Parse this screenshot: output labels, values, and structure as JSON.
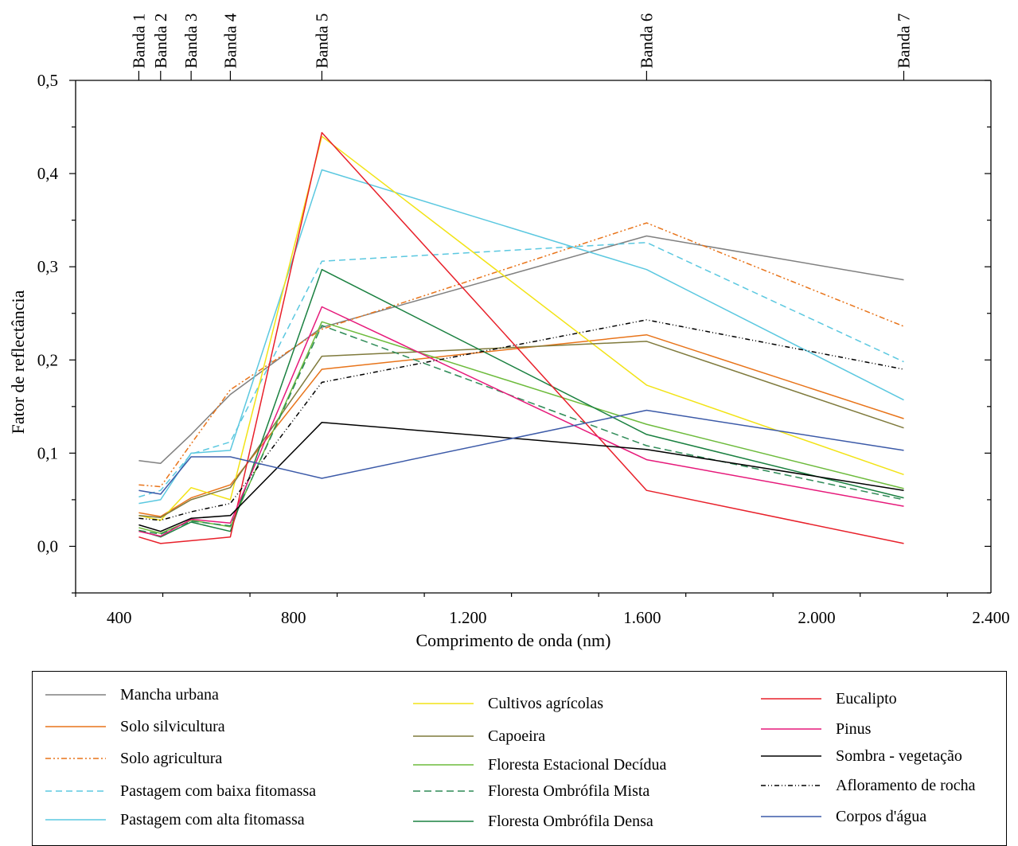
{
  "chart_data": {
    "type": "line",
    "title": "",
    "xlabel": "Comprimento de onda (nm)",
    "ylabel": "Fator de reflectância",
    "xlim": [
      300,
      2400
    ],
    "ylim": [
      -0.05,
      0.5
    ],
    "x_ticks": [
      400,
      800,
      1200,
      1600,
      2000,
      2400
    ],
    "x_tick_labels": [
      "400",
      "800",
      "1.200",
      "1.600",
      "2.000",
      "2.400"
    ],
    "y_ticks": [
      0.0,
      0.1,
      0.2,
      0.3,
      0.4,
      0.5
    ],
    "y_tick_labels": [
      "0,0",
      "0,1",
      "0,2",
      "0,3",
      "0,4",
      "0,5"
    ],
    "bands": [
      {
        "label": "Banda 1",
        "x": 445
      },
      {
        "label": "Banda 2",
        "x": 495
      },
      {
        "label": "Banda 3",
        "x": 565
      },
      {
        "label": "Banda 4",
        "x": 655
      },
      {
        "label": "Banda 5",
        "x": 865
      },
      {
        "label": "Banda 6",
        "x": 1610
      },
      {
        "label": "Banda 7",
        "x": 2200
      }
    ],
    "x": [
      445,
      495,
      565,
      655,
      865,
      1610,
      2200
    ],
    "grid": false,
    "legend_position": "bottom",
    "series": [
      {
        "name": "Mancha urbana",
        "color": "#808080",
        "dash": "",
        "values": [
          0.092,
          0.089,
          0.12,
          0.163,
          0.235,
          0.333,
          0.286
        ]
      },
      {
        "name": "Solo silvicultura",
        "color": "#e8741a",
        "dash": "",
        "values": [
          0.036,
          0.032,
          0.052,
          0.066,
          0.19,
          0.227,
          0.137
        ]
      },
      {
        "name": "Solo agricultura",
        "color": "#e8741a",
        "dash": "7 3 2 3 2 3",
        "values": [
          0.066,
          0.064,
          0.11,
          0.168,
          0.233,
          0.347,
          0.236
        ]
      },
      {
        "name": "Pastagem com baixa fitomassa",
        "color": "#5bc8e0",
        "dash": "8 5",
        "values": [
          0.053,
          0.06,
          0.099,
          0.112,
          0.306,
          0.326,
          0.198
        ]
      },
      {
        "name": "Pastagem com alta fitomassa",
        "color": "#5bc8e0",
        "dash": "",
        "values": [
          0.046,
          0.05,
          0.1,
          0.103,
          0.404,
          0.297,
          0.157
        ]
      },
      {
        "name": "Cultivos agrícolas",
        "color": "#f2e316",
        "dash": "",
        "values": [
          0.033,
          0.028,
          0.063,
          0.05,
          0.44,
          0.173,
          0.077
        ]
      },
      {
        "name": "Capoeira",
        "color": "#7f7a3c",
        "dash": "",
        "values": [
          0.033,
          0.031,
          0.05,
          0.063,
          0.204,
          0.22,
          0.127
        ]
      },
      {
        "name": "Floresta Estacional Decídua",
        "color": "#6dbb3c",
        "dash": "",
        "values": [
          0.02,
          0.014,
          0.028,
          0.021,
          0.241,
          0.131,
          0.062
        ]
      },
      {
        "name": "Floresta Ombrófila Mista",
        "color": "#2e8b57",
        "dash": "9 5",
        "values": [
          0.017,
          0.013,
          0.027,
          0.022,
          0.237,
          0.108,
          0.05
        ]
      },
      {
        "name": "Floresta Ombrófila Densa",
        "color": "#1a8040",
        "dash": "",
        "values": [
          0.017,
          0.01,
          0.026,
          0.016,
          0.297,
          0.12,
          0.052
        ]
      },
      {
        "name": "Eucalipto",
        "color": "#e8202a",
        "dash": "",
        "values": [
          0.01,
          0.003,
          0.006,
          0.01,
          0.444,
          0.06,
          0.003
        ]
      },
      {
        "name": "Pinus",
        "color": "#e6197a",
        "dash": "",
        "values": [
          0.016,
          0.011,
          0.029,
          0.025,
          0.257,
          0.093,
          0.043
        ]
      },
      {
        "name": "Sombra - vegetação",
        "color": "#000000",
        "dash": "",
        "values": [
          0.023,
          0.016,
          0.03,
          0.033,
          0.133,
          0.104,
          0.06
        ]
      },
      {
        "name": "Afloramento de rocha",
        "color": "#000000",
        "dash": "6 3 1 3 1 3",
        "values": [
          0.03,
          0.028,
          0.037,
          0.046,
          0.176,
          0.243,
          0.19
        ]
      },
      {
        "name": "Corpos d'água",
        "color": "#3c5aa8",
        "dash": "",
        "values": [
          0.06,
          0.056,
          0.096,
          0.096,
          0.073,
          0.146,
          0.103
        ]
      }
    ]
  }
}
